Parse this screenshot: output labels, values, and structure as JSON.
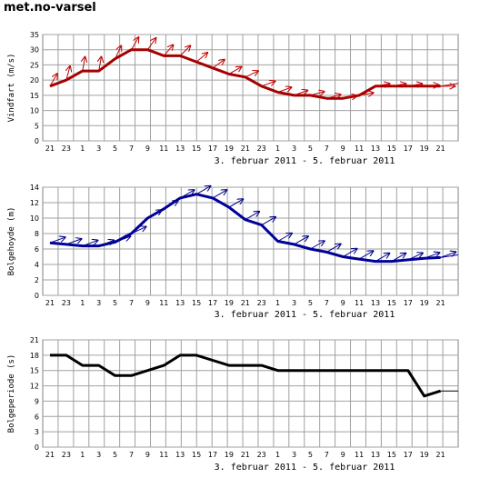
{
  "brand": "met.no-varsel",
  "chart_data": [
    {
      "type": "line",
      "ylabel": "Vindfart (m/s)",
      "xlabel": "3. februar 2011 -  5. februar 2011",
      "x_ticks": [
        "21",
        "23",
        "1",
        "3",
        "5",
        "7",
        "9",
        "11",
        "13",
        "15",
        "17",
        "19",
        "21",
        "23",
        "1",
        "3",
        "5",
        "7",
        "9",
        "11",
        "13",
        "15",
        "17",
        "19",
        "21"
      ],
      "ylim": [
        0,
        35
      ],
      "yticks": [
        0,
        5,
        10,
        15,
        20,
        25,
        30,
        35
      ],
      "grid": true,
      "colors": {
        "series": "#a40000",
        "arrows": "#c00000"
      },
      "series": [
        {
          "values": [
            18,
            20,
            23,
            23,
            27,
            30,
            30,
            28,
            28,
            26,
            24,
            22,
            21,
            18,
            16,
            15,
            15,
            14,
            14,
            15,
            18,
            18,
            18,
            18,
            18
          ]
        }
      ]
    },
    {
      "type": "line",
      "ylabel": "Bolgehoyde (m)",
      "xlabel": "3. februar 2011 -  5. februar 2011",
      "x_ticks": [
        "21",
        "23",
        "1",
        "3",
        "5",
        "7",
        "9",
        "11",
        "13",
        "15",
        "17",
        "19",
        "21",
        "23",
        "1",
        "3",
        "5",
        "7",
        "9",
        "11",
        "13",
        "15",
        "17",
        "19",
        "21"
      ],
      "ylim": [
        0,
        14
      ],
      "yticks": [
        0,
        2,
        4,
        6,
        8,
        10,
        12,
        14
      ],
      "grid": true,
      "colors": {
        "series": "#00009a",
        "arrows": "#00008b"
      },
      "series": [
        {
          "values": [
            6.8,
            6.6,
            6.4,
            6.4,
            6.9,
            8.0,
            10.0,
            11.2,
            12.6,
            13.1,
            12.6,
            11.4,
            9.8,
            9.1,
            7.0,
            6.6,
            6.0,
            5.6,
            5.0,
            4.7,
            4.4,
            4.4,
            4.6,
            4.8,
            4.9
          ]
        }
      ]
    },
    {
      "type": "line",
      "ylabel": "Bolgeperiode (s)",
      "xlabel": "3. februar 2011 -  5. februar 2011",
      "x_ticks": [
        "21",
        "23",
        "1",
        "3",
        "5",
        "7",
        "9",
        "11",
        "13",
        "15",
        "17",
        "19",
        "21",
        "23",
        "1",
        "3",
        "5",
        "7",
        "9",
        "11",
        "13",
        "15",
        "17",
        "19",
        "21"
      ],
      "ylim": [
        0,
        21
      ],
      "yticks": [
        0,
        3,
        6,
        9,
        12,
        15,
        18,
        21
      ],
      "grid": true,
      "colors": {
        "series": "#000000"
      },
      "series": [
        {
          "values": [
            18,
            18,
            16,
            16,
            14,
            14,
            15,
            16,
            18,
            18,
            17,
            16,
            16,
            16,
            15,
            15,
            15,
            15,
            15,
            15,
            15,
            15,
            15,
            10,
            11
          ]
        }
      ]
    }
  ]
}
